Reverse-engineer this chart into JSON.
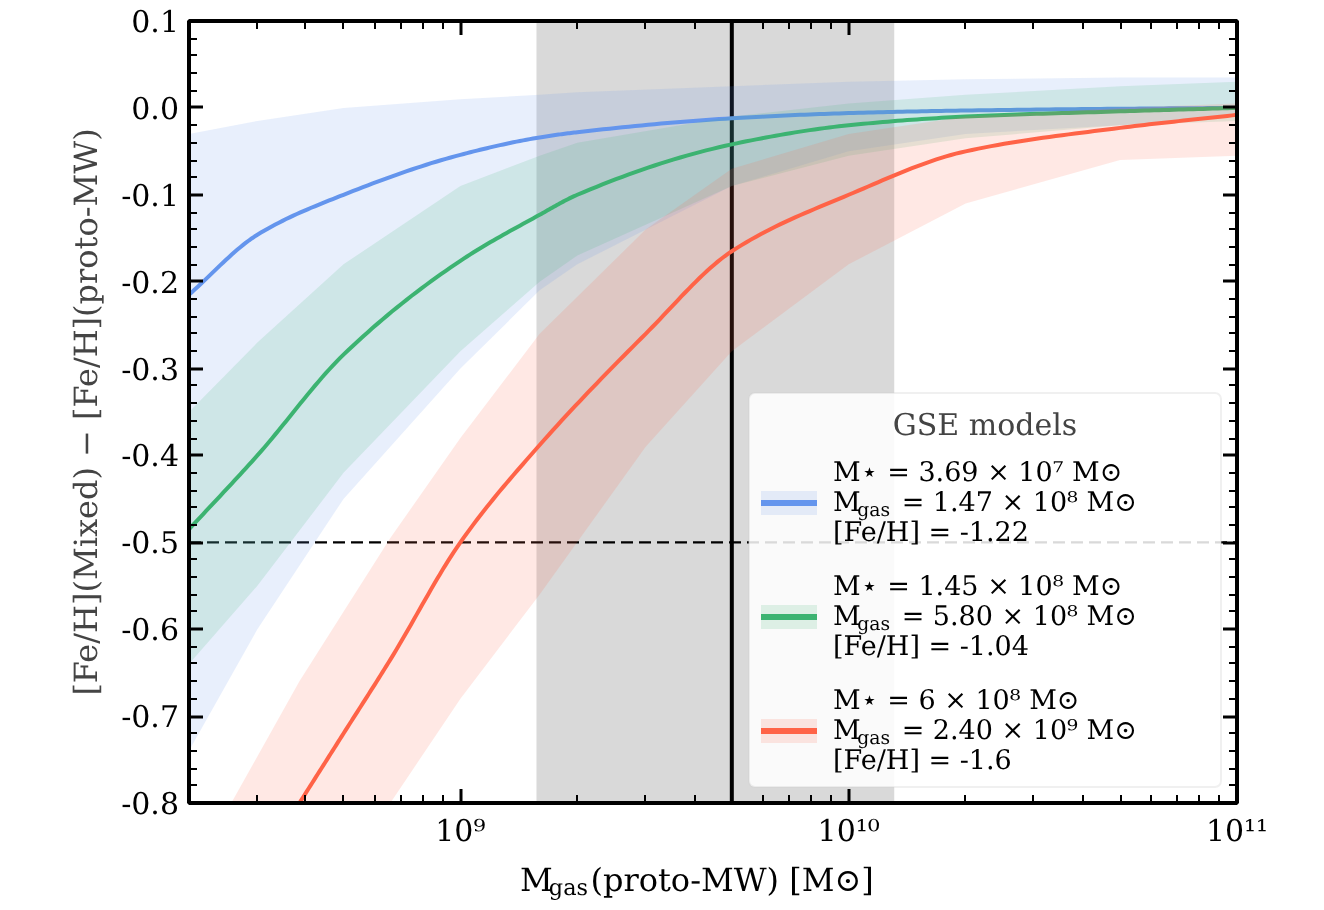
{
  "chart_data": {
    "type": "line",
    "xlabel": "M$_{gas}$(proto-MW) [M⊙]",
    "ylabel": "[Fe/H](Mixed) − [Fe/H](proto-MW)",
    "legend_title": "GSE models",
    "log": "x",
    "xlim": [
      200000000.0,
      100000000000.0
    ],
    "ylim": [
      -0.8,
      0.1
    ],
    "xticks": [
      {
        "value": 1000000000.0,
        "label": "10⁹"
      },
      {
        "value": 10000000000.0,
        "label": "10¹⁰"
      },
      {
        "value": 100000000000.0,
        "label": "10¹¹"
      }
    ],
    "yticks": [
      -0.8,
      -0.7,
      -0.6,
      -0.5,
      -0.4,
      -0.3,
      -0.2,
      -0.1,
      {
        "value": 0,
        "label": "0.0"
      },
      0.1
    ],
    "grid": false,
    "legend": "bottom right",
    "marker": "none",
    "line_style": "solid",
    "ref_lines": [
      {
        "axis": "y",
        "value": -0.5,
        "label": null,
        "color": "#000000",
        "line_style": "dashed"
      },
      {
        "axis": "x",
        "value": 5000000000.0,
        "label": null,
        "color": "#000000",
        "line_style": "solid"
      }
    ],
    "bands": [
      {
        "axis": "x",
        "from": 1570000000.0,
        "to": 13100000000.0,
        "label": null,
        "color": "#d9d9d9"
      }
    ],
    "series": [
      {
        "name": "M⋆ = 3.69 × 10⁷ M⊙\nM$_{gas}$ = 1.47 × 10⁸ M⊙\n[Fe/H] = -1.22",
        "color": "#6495ed",
        "x": [
          200000000.0,
          300000000.0,
          500000000.0,
          1000000000.0,
          1600000000.0,
          2000000000.0,
          5000000000.0,
          10000000000.0,
          20000000000.0,
          50000000000.0,
          100000000000.0
        ],
        "values": [
          -0.215,
          -0.146,
          -0.1,
          -0.054,
          -0.034,
          -0.028,
          -0.012,
          -0.006,
          -0.003,
          -0.001,
          0.0
        ],
        "lower": [
          -0.74,
          -0.6,
          -0.45,
          -0.3,
          -0.21,
          -0.18,
          -0.09,
          -0.05,
          -0.03,
          -0.02,
          -0.01
        ],
        "upper": [
          -0.03,
          -0.015,
          0.0,
          0.01,
          0.015,
          0.018,
          0.025,
          0.03,
          0.033,
          0.035,
          0.035
        ]
      },
      {
        "name": "M⋆ = 1.45 × 10⁸ M⊙\nM$_{gas}$ = 5.80 × 10⁸ M⊙\n[Fe/H] = -1.04",
        "color": "#3cb371",
        "x": [
          200000000.0,
          300000000.0,
          500000000.0,
          1000000000.0,
          1600000000.0,
          2000000000.0,
          5000000000.0,
          10000000000.0,
          20000000000.0,
          50000000000.0,
          100000000000.0
        ],
        "values": [
          -0.485,
          -0.4,
          -0.284,
          -0.176,
          -0.123,
          -0.1,
          -0.042,
          -0.02,
          -0.01,
          -0.004,
          0.0
        ],
        "lower": [
          -0.64,
          -0.55,
          -0.42,
          -0.28,
          -0.2,
          -0.17,
          -0.09,
          -0.055,
          -0.035,
          -0.02,
          -0.015
        ],
        "upper": [
          -0.35,
          -0.27,
          -0.18,
          -0.09,
          -0.055,
          -0.04,
          -0.01,
          0.005,
          0.015,
          0.025,
          0.03
        ]
      },
      {
        "name": "M⋆ = 6 × 10⁸ M⊙\nM$_{gas}$ = 2.40 × 10⁹ M⊙\n[Fe/H] = -1.6",
        "color": "#ff6347",
        "x": [
          257000000.0,
          385000000.0,
          500000000.0,
          660000000.0,
          1000000000.0,
          1600000000.0,
          3000000000.0,
          5000000000.0,
          10000000000.0,
          20000000000.0,
          50000000000.0,
          100000000000.0
        ],
        "values": [
          null,
          -0.8,
          -0.72,
          -0.635,
          -0.5,
          -0.388,
          -0.26,
          -0.165,
          -0.1,
          -0.05,
          -0.023,
          -0.008
        ],
        "lower": [
          -0.8,
          -0.8,
          -0.8,
          -0.8,
          -0.68,
          -0.56,
          -0.39,
          -0.28,
          -0.18,
          -0.11,
          -0.06,
          -0.055
        ],
        "upper": [
          -0.8,
          -0.66,
          -0.58,
          -0.495,
          -0.38,
          -0.26,
          -0.14,
          -0.07,
          -0.03,
          -0.01,
          0.0,
          0.005
        ]
      }
    ]
  }
}
